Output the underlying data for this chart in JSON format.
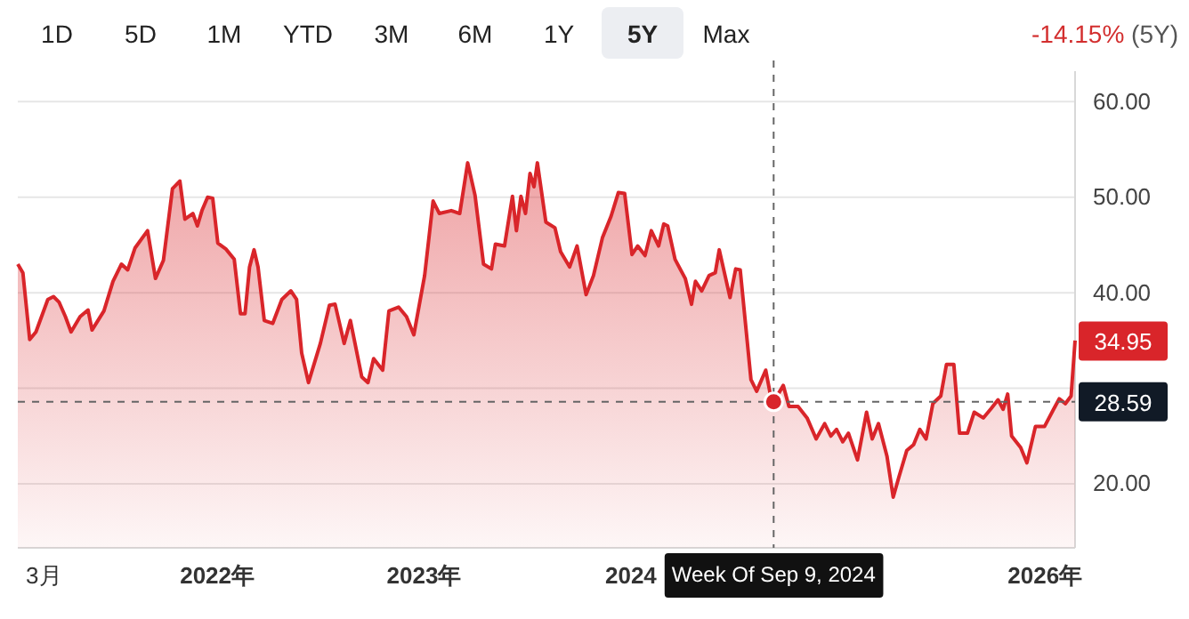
{
  "chart_data": {
    "type": "area",
    "grid": "y",
    "tick_labels": "xy",
    "xlim": [
      "2021-01-14",
      "2026-02-23"
    ],
    "xticks": [
      {
        "value": "2021-03-01",
        "label": "3月"
      },
      {
        "value": "2022-01-01",
        "label": "2022年"
      },
      {
        "value": "2023-01-01",
        "label": "2023年"
      },
      {
        "value": "2024-01-01",
        "label": "2024"
      },
      {
        "value": "2026-01-01",
        "label": "2026年"
      }
    ],
    "ylim": [
      13.3,
      63.2
    ],
    "yticks": [
      {
        "value": 20,
        "label": "20.00"
      },
      {
        "value": 30,
        "label": null
      },
      {
        "value": 40,
        "label": "40.00"
      },
      {
        "value": 50,
        "label": "50.00"
      },
      {
        "value": 60,
        "label": "60.00"
      }
    ],
    "series": [
      {
        "color": "#d9252a",
        "x": [
          "2021-01-14",
          "2021-01-23",
          "2021-02-04",
          "2021-02-15",
          "2021-03-08",
          "2021-03-18",
          "2021-03-28",
          "2021-04-08",
          "2021-04-18",
          "2021-05-04",
          "2021-05-18",
          "2021-05-25",
          "2021-06-15",
          "2021-07-01",
          "2021-07-16",
          "2021-07-27",
          "2021-08-09",
          "2021-08-31",
          "2021-09-14",
          "2021-09-28",
          "2021-10-14",
          "2021-10-27",
          "2021-11-05",
          "2021-11-19",
          "2021-11-27",
          "2021-12-05",
          "2021-12-15",
          "2021-12-24",
          "2022-01-02",
          "2022-01-16",
          "2022-01-31",
          "2022-02-11",
          "2022-02-19",
          "2022-02-27",
          "2022-03-07",
          "2022-03-14",
          "2022-03-25",
          "2022-04-09",
          "2022-04-25",
          "2022-05-11",
          "2022-05-21",
          "2022-05-30",
          "2022-06-11",
          "2022-07-02",
          "2022-07-18",
          "2022-07-28",
          "2022-08-13",
          "2022-08-24",
          "2022-09-13",
          "2022-09-24",
          "2022-10-04",
          "2022-10-20",
          "2022-10-31",
          "2022-11-17",
          "2022-12-01",
          "2022-12-14",
          "2023-01-02",
          "2023-01-17",
          "2023-01-28",
          "2023-02-18",
          "2023-03-05",
          "2023-03-19",
          "2023-04-01",
          "2023-04-16",
          "2023-04-30",
          "2023-05-07",
          "2023-05-23",
          "2023-06-06",
          "2023-06-13",
          "2023-06-21",
          "2023-06-29",
          "2023-07-07",
          "2023-07-14",
          "2023-07-20",
          "2023-08-04",
          "2023-08-20",
          "2023-08-30",
          "2023-09-15",
          "2023-09-28",
          "2023-10-14",
          "2023-10-27",
          "2023-11-12",
          "2023-11-27",
          "2023-12-10",
          "2023-12-21",
          "2024-01-03",
          "2024-01-13",
          "2024-01-26",
          "2024-02-06",
          "2024-02-19",
          "2024-02-28",
          "2024-03-06",
          "2024-03-19",
          "2024-04-06",
          "2024-04-17",
          "2024-04-24",
          "2024-05-05",
          "2024-05-18",
          "2024-05-29",
          "2024-06-05",
          "2024-06-24",
          "2024-07-04",
          "2024-07-12",
          "2024-07-31",
          "2024-08-10",
          "2024-08-26",
          "2024-09-05",
          "2024-09-09",
          "2024-09-26",
          "2024-10-06",
          "2024-10-22",
          "2024-11-07",
          "2024-11-23",
          "2024-12-08",
          "2024-12-19",
          "2024-12-29",
          "2025-01-09",
          "2025-01-19",
          "2025-02-04",
          "2025-02-20",
          "2025-03-02",
          "2025-03-13",
          "2025-03-28",
          "2025-04-08",
          "2025-04-18",
          "2025-05-02",
          "2025-05-14",
          "2025-05-25",
          "2025-06-05",
          "2025-06-17",
          "2025-07-01",
          "2025-07-11",
          "2025-07-24",
          "2025-08-03",
          "2025-08-17",
          "2025-08-29",
          "2025-09-14",
          "2025-09-28",
          "2025-10-10",
          "2025-10-19",
          "2025-10-27",
          "2025-11-03",
          "2025-11-19",
          "2025-11-30",
          "2025-12-15",
          "2025-12-31",
          "2026-01-16",
          "2026-01-26",
          "2026-02-06",
          "2026-02-16",
          "2026-02-23"
        ],
        "values": [
          43.0,
          42.1,
          35.1,
          35.9,
          39.3,
          39.6,
          39.0,
          37.5,
          35.9,
          37.5,
          38.2,
          36.1,
          38.1,
          41.2,
          43.0,
          42.4,
          44.7,
          46.5,
          41.5,
          43.4,
          50.9,
          51.7,
          47.7,
          48.3,
          47.0,
          48.6,
          50.0,
          49.9,
          45.2,
          44.6,
          43.5,
          37.8,
          37.8,
          42.7,
          44.5,
          42.7,
          37.1,
          36.8,
          39.3,
          40.2,
          39.3,
          33.7,
          30.6,
          34.7,
          38.7,
          38.8,
          34.7,
          37.1,
          31.2,
          30.6,
          33.1,
          31.9,
          38.1,
          38.5,
          37.5,
          35.6,
          41.8,
          49.6,
          48.3,
          48.6,
          48.3,
          53.6,
          50.2,
          43.0,
          42.5,
          45.1,
          44.9,
          50.1,
          46.5,
          50.1,
          48.3,
          52.5,
          51.1,
          53.6,
          47.4,
          46.8,
          44.3,
          42.7,
          44.9,
          39.8,
          41.8,
          45.8,
          48.0,
          50.5,
          50.4,
          44.0,
          44.9,
          43.9,
          46.5,
          44.9,
          47.2,
          47.0,
          43.5,
          41.5,
          38.8,
          41.2,
          40.2,
          41.8,
          42.1,
          44.5,
          39.5,
          42.5,
          42.4,
          30.9,
          29.7,
          31.9,
          28.8,
          28.6,
          30.3,
          28.1,
          28.1,
          26.9,
          24.7,
          26.3,
          25.0,
          25.7,
          24.4,
          25.3,
          22.5,
          27.5,
          24.7,
          26.3,
          22.9,
          18.6,
          20.7,
          23.5,
          24.1,
          25.7,
          24.7,
          28.4,
          29.2,
          32.5,
          32.5,
          25.3,
          25.3,
          27.5,
          26.9,
          27.9,
          28.8,
          27.8,
          29.4,
          25.0,
          23.8,
          22.2,
          26.0,
          26.0,
          27.8,
          28.9,
          28.4,
          29.2,
          35.0
        ]
      }
    ],
    "ref_lines": [
      {
        "axis": "x",
        "value": "2024-09-09",
        "label": "Week Of Sep 9, 2024",
        "color": "#666666",
        "line_style": "dashed"
      },
      {
        "axis": "y",
        "value": 28.59,
        "label": "28.59",
        "color": "#666666",
        "line_style": "dashed"
      }
    ],
    "annotations": [
      "1D",
      "5D",
      "1M",
      "YTD",
      "3M",
      "6M",
      "1Y",
      "5Y",
      "Max",
      "-14.15%",
      "(5Y)",
      {
        "text": "34.95",
        "x": "2026-02-23",
        "y": 34.95
      }
    ]
  }
}
